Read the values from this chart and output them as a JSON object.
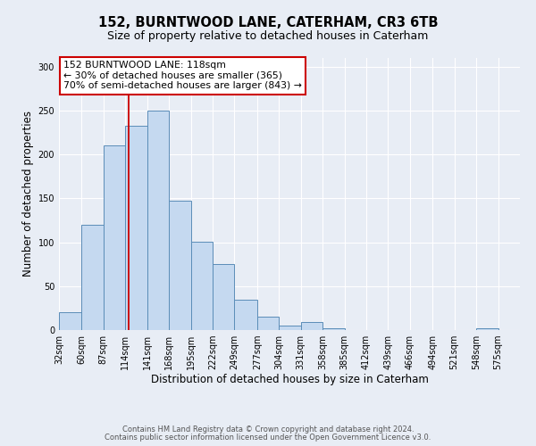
{
  "title": "152, BURNTWOOD LANE, CATERHAM, CR3 6TB",
  "subtitle": "Size of property relative to detached houses in Caterham",
  "xlabel": "Distribution of detached houses by size in Caterham",
  "ylabel": "Number of detached properties",
  "bin_labels": [
    "32sqm",
    "60sqm",
    "87sqm",
    "114sqm",
    "141sqm",
    "168sqm",
    "195sqm",
    "222sqm",
    "249sqm",
    "277sqm",
    "304sqm",
    "331sqm",
    "358sqm",
    "385sqm",
    "412sqm",
    "439sqm",
    "466sqm",
    "494sqm",
    "521sqm",
    "548sqm",
    "575sqm"
  ],
  "bin_edges": [
    32,
    60,
    87,
    114,
    141,
    168,
    195,
    222,
    249,
    277,
    304,
    331,
    358,
    385,
    412,
    439,
    466,
    494,
    521,
    548,
    575
  ],
  "bar_heights": [
    20,
    120,
    210,
    233,
    250,
    147,
    101,
    75,
    35,
    15,
    5,
    9,
    2,
    0,
    0,
    0,
    0,
    0,
    0,
    2
  ],
  "bar_color": "#c5d9f0",
  "bar_edge_color": "#5b8db8",
  "vline_x": 118,
  "vline_color": "#cc0000",
  "annotation_title": "152 BURNTWOOD LANE: 118sqm",
  "annotation_line1": "← 30% of detached houses are smaller (365)",
  "annotation_line2": "70% of semi-detached houses are larger (843) →",
  "annotation_box_edge": "#cc0000",
  "ylim": [
    0,
    310
  ],
  "yticks": [
    0,
    50,
    100,
    150,
    200,
    250,
    300
  ],
  "footer1": "Contains HM Land Registry data © Crown copyright and database right 2024.",
  "footer2": "Contains public sector information licensed under the Open Government Licence v3.0.",
  "bg_color": "#e8edf5",
  "plot_bg_color": "#e8edf5",
  "grid_color": "#ffffff",
  "title_fontsize": 10.5,
  "subtitle_fontsize": 9,
  "axis_label_fontsize": 8.5,
  "tick_fontsize": 7,
  "footer_fontsize": 6.0
}
